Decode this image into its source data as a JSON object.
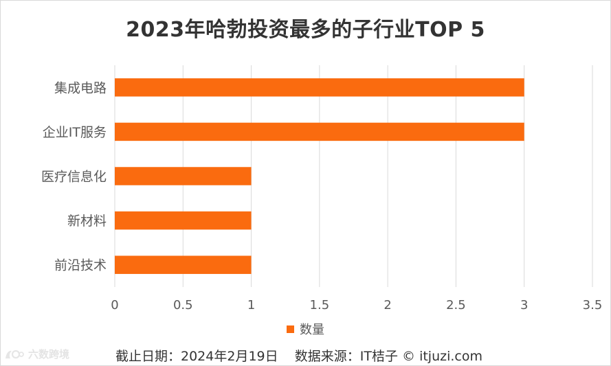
{
  "chart_data": {
    "type": "bar",
    "orientation": "horizontal",
    "title": "2023年哈勃投资最多的子行业TOP 5",
    "categories": [
      "集成电路",
      "企业IT服务",
      "医疗信息化",
      "新材料",
      "前沿技术"
    ],
    "series": [
      {
        "name": "数量",
        "values": [
          3,
          3,
          1,
          1,
          1
        ]
      }
    ],
    "xlim": [
      0,
      3.5
    ],
    "xticks": [
      "0",
      "0.5",
      "1",
      "1.5",
      "2",
      "2.5",
      "3",
      "3.5"
    ],
    "xlabel": "",
    "ylabel": "",
    "grid": true,
    "legend_position": "bottom"
  },
  "colors": {
    "bar": "#FA6B0F",
    "grid": "#D9D9D9",
    "axis_text": "#595959"
  },
  "legend": {
    "label": "数量"
  },
  "footer": {
    "text": "截止日期：2024年2月19日    数据来源：IT桔子 © itjuzi.com"
  },
  "watermark": {
    "text": "六数跨境",
    "icon": "brand-logo-icon"
  }
}
